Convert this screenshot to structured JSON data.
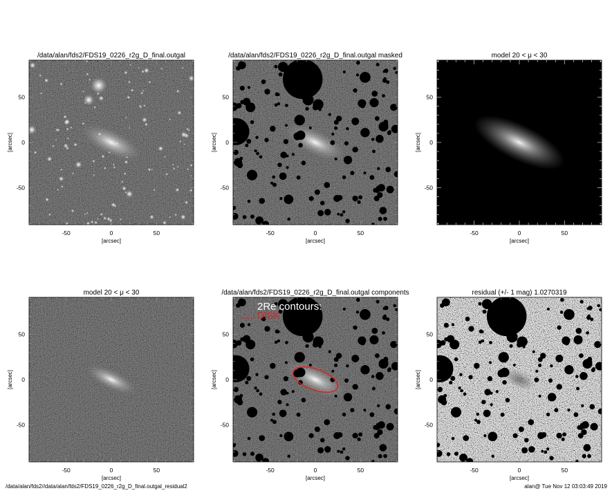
{
  "panels": [
    {
      "kind": "image",
      "title": "/data/alan/fds2/FDS19_0226_r2g_D_final.outgal",
      "xlabel": "[arcsec]",
      "ylabel": "[arcsec]"
    },
    {
      "kind": "masked",
      "title": "/data/alan/fds2/FDS19_0226_r2g_D_final.outgal masked",
      "xlabel": "[arcsec]",
      "ylabel": "[arcsec]"
    },
    {
      "kind": "model",
      "title": "model 20 < μ < 30",
      "xlabel": "[arcsec]",
      "ylabel": "[arcsec]"
    },
    {
      "kind": "model_noise",
      "title": "model 20 < μ < 30",
      "xlabel": "[arcsec]",
      "ylabel": "[arcsec]"
    },
    {
      "kind": "components",
      "title": "/data/alan/fds2/FDS19_0226_r2g_D_final.outgal components",
      "xlabel": "[arcsec]",
      "ylabel": "[arcsec]"
    },
    {
      "kind": "residual",
      "title": "residual  (+/- 1 mag)        1.0270319",
      "xlabel": "[arcsec]",
      "ylabel": "[arcsec]"
    }
  ],
  "axis": {
    "range": [
      -91,
      91
    ],
    "ticks": [
      "-50",
      "0",
      "50"
    ],
    "tick_values": [
      -50,
      0,
      50
    ]
  },
  "legend": {
    "heading": "2Re contours:",
    "items": [
      {
        "label": "DISK",
        "color": "#e02020"
      }
    ]
  },
  "footer": {
    "left": "/data/alan/fds2//data/alan/fds2/FDS19_0226_r2g_D_final.outgal_residual2",
    "right": "alan@  Tue Nov 12 03:03:49 2019"
  },
  "colors": {
    "disk_contour": "#e02020",
    "mask": "#000000"
  }
}
